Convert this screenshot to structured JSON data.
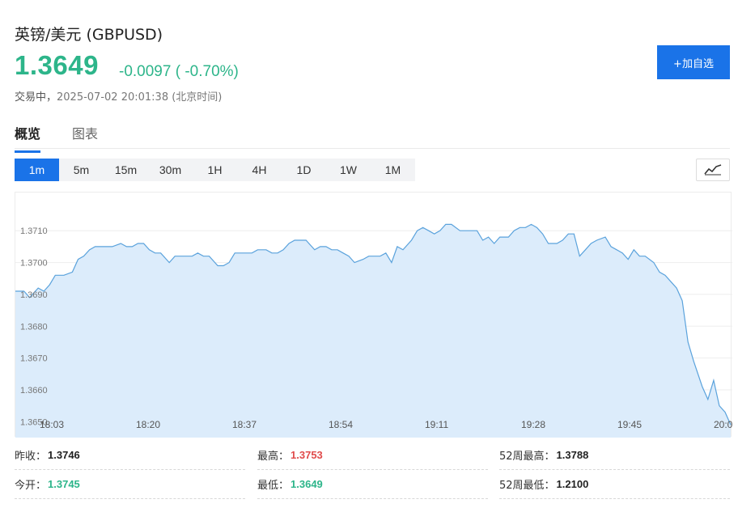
{
  "header": {
    "title": "英镑/美元 (GBPUSD)",
    "price": "1.3649",
    "change": "-0.0097 ( -0.70%)",
    "status_label": "交易中，",
    "timestamp": "2025-07-02 20:01:38 (北京时间)",
    "add_button": "+加自选"
  },
  "colors": {
    "up": "#e04b4b",
    "down": "#2db58a",
    "accent": "#1a73e8",
    "line": "#5aa2dc",
    "area": "#dcecfb"
  },
  "tabs": [
    {
      "label": "概览",
      "active": true
    },
    {
      "label": "图表",
      "active": false
    }
  ],
  "intervals": [
    "1m",
    "5m",
    "15m",
    "30m",
    "1H",
    "4H",
    "1D",
    "1W",
    "1M"
  ],
  "active_interval": "1m",
  "chart_icon": "line-chart-icon",
  "chart_data": {
    "type": "area",
    "y_ticks": [
      "1.3710",
      "1.3700",
      "1.3690",
      "1.3680",
      "1.3670",
      "1.3660",
      "1.3650"
    ],
    "x_ticks": [
      "18:03",
      "18:20",
      "18:37",
      "18:54",
      "19:11",
      "19:28",
      "19:45",
      "20:0"
    ],
    "ylim": [
      1.3645,
      1.3722
    ],
    "x": [
      0,
      3,
      5,
      8,
      10,
      12,
      14,
      17,
      20,
      22,
      24,
      26,
      28,
      30,
      32,
      34,
      37,
      39,
      41,
      43,
      45,
      47,
      49,
      51,
      54,
      56,
      58,
      60,
      62,
      64,
      66,
      68,
      71,
      73,
      75,
      77,
      79,
      81,
      83,
      85,
      88,
      90,
      92,
      94,
      96,
      98,
      100,
      102,
      105,
      107,
      109,
      111,
      113,
      115,
      117,
      119,
      122,
      124,
      126,
      128,
      130,
      132,
      134,
      136,
      139,
      141,
      143,
      145,
      147,
      149,
      151,
      153,
      156,
      158,
      160,
      162,
      164,
      166,
      168,
      170,
      173,
      175,
      177,
      179,
      181,
      183,
      185,
      187,
      190,
      192,
      194,
      196,
      198,
      200,
      202,
      204,
      207,
      209,
      211,
      213,
      215,
      217,
      219,
      221,
      224,
      226,
      228,
      230,
      232,
      234,
      236,
      238,
      241,
      243,
      245,
      247,
      249,
      251
    ],
    "values": [
      1.3691,
      1.3691,
      1.3689,
      1.3692,
      1.3691,
      1.3693,
      1.3696,
      1.3696,
      1.3697,
      1.3701,
      1.3702,
      1.3704,
      1.3705,
      1.3705,
      1.3705,
      1.3705,
      1.3706,
      1.3705,
      1.3705,
      1.3706,
      1.3706,
      1.3704,
      1.3703,
      1.3703,
      1.37,
      1.3702,
      1.3702,
      1.3702,
      1.3702,
      1.3703,
      1.3702,
      1.3702,
      1.3699,
      1.3699,
      1.37,
      1.3703,
      1.3703,
      1.3703,
      1.3703,
      1.3704,
      1.3704,
      1.3703,
      1.3703,
      1.3704,
      1.3706,
      1.3707,
      1.3707,
      1.3707,
      1.3704,
      1.3705,
      1.3705,
      1.3704,
      1.3704,
      1.3703,
      1.3702,
      1.37,
      1.3701,
      1.3702,
      1.3702,
      1.3702,
      1.3703,
      1.37,
      1.3705,
      1.3704,
      1.3707,
      1.371,
      1.3711,
      1.371,
      1.3709,
      1.371,
      1.3712,
      1.3712,
      1.371,
      1.371,
      1.371,
      1.371,
      1.3707,
      1.3708,
      1.3706,
      1.3708,
      1.3708,
      1.371,
      1.3711,
      1.3711,
      1.3712,
      1.3711,
      1.3709,
      1.3706,
      1.3706,
      1.3707,
      1.3709,
      1.3709,
      1.3702,
      1.3704,
      1.3706,
      1.3707,
      1.3708,
      1.3705,
      1.3704,
      1.3703,
      1.3701,
      1.3704,
      1.3702,
      1.3702,
      1.37,
      1.3697,
      1.3696,
      1.3694,
      1.3692,
      1.3688,
      1.3675,
      1.3669,
      1.3661,
      1.3657,
      1.3663,
      1.3655,
      1.3653,
      1.3649
    ]
  },
  "stats": [
    {
      "label": "昨收：",
      "value": "1.3746",
      "tone": "neutral"
    },
    {
      "label": "最高：",
      "value": "1.3753",
      "tone": "red"
    },
    {
      "label": "52周最高：",
      "value": "1.3788",
      "tone": "neutral"
    },
    {
      "label": "今开：",
      "value": "1.3745",
      "tone": "green"
    },
    {
      "label": "最低：",
      "value": "1.3649",
      "tone": "green"
    },
    {
      "label": "52周最低：",
      "value": "1.2100",
      "tone": "neutral"
    }
  ]
}
